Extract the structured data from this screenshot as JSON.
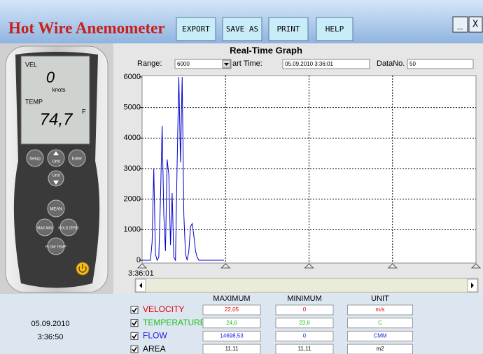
{
  "header": {
    "title": "Hot Wire Anemometer",
    "buttons": [
      "EXPORT",
      "SAVE AS",
      "PRINT",
      "HELP"
    ],
    "window_buttons": [
      "_",
      "X"
    ]
  },
  "device": {
    "screen": {
      "vel_label": "VEL",
      "vel_value": "0",
      "vel_unit": "knots",
      "temp_label": "TEMP",
      "temp_value": "74,7",
      "temp_unit": "F"
    },
    "buttons": [
      "Setup",
      "Unit",
      "Enter",
      "Unit",
      "MEAN",
      "MAX MIN",
      "HOLD ZERO",
      "FLOW TEMP"
    ]
  },
  "controls": {
    "range_label": "Range:",
    "range_value": "6000",
    "start_label": "art Time:",
    "start_value": "05.09.2010 3:36:01",
    "datano_label": "DataNo.",
    "datano_value": "50"
  },
  "chart_data": {
    "type": "line",
    "title": "Real-Time Graph",
    "color": "#0000cc",
    "x": [
      0,
      1,
      2,
      3,
      4,
      5,
      6,
      7,
      8,
      9,
      10,
      11,
      12,
      13,
      14,
      15,
      16,
      17,
      18,
      19,
      20,
      21,
      22,
      23,
      24,
      25,
      26,
      27,
      28,
      29,
      30,
      31,
      32,
      33,
      34,
      35,
      36,
      37,
      38,
      39,
      40,
      41,
      42,
      43,
      44,
      45,
      46,
      47,
      48,
      49
    ],
    "values": [
      0,
      0,
      0,
      0,
      0,
      0,
      600,
      3000,
      200,
      0,
      100,
      2000,
      4400,
      1500,
      300,
      3300,
      2800,
      500,
      2200,
      100,
      0,
      3200,
      6000,
      3200,
      6000,
      1500,
      200,
      0,
      300,
      1100,
      1200,
      800,
      300,
      100,
      0,
      0,
      0,
      0,
      0,
      0,
      0,
      0,
      0,
      0,
      0,
      0,
      0,
      0,
      0,
      0
    ],
    "xlim": [
      0,
      200
    ],
    "xticks": [
      0,
      50,
      100,
      150,
      200
    ],
    "x_origin_label": "3:36:01",
    "ylim": [
      0,
      6000
    ],
    "yticks": [
      0,
      1000,
      2000,
      3000,
      4000,
      5000,
      6000
    ],
    "grid": true
  },
  "stats": {
    "headers": [
      "MAXIMUM",
      "MINIMUM",
      "UNIT"
    ],
    "rows": [
      {
        "name": "VELOCITY",
        "color": "#e00000",
        "max": "22,05",
        "min": "0",
        "unit": "m/s"
      },
      {
        "name": "TEMPERATURE",
        "color": "#20c020",
        "max": "24,6",
        "min": "23,6",
        "unit": "C"
      },
      {
        "name": "FLOW",
        "color": "#2020e0",
        "max": "14698,53",
        "min": "0",
        "unit": "CMM"
      },
      {
        "name": "AREA",
        "color": "#000000",
        "max": "11,11",
        "min": "11,11",
        "unit": "m2"
      }
    ]
  },
  "clock": {
    "date": "05.09.2010",
    "time": "3:36:50"
  }
}
